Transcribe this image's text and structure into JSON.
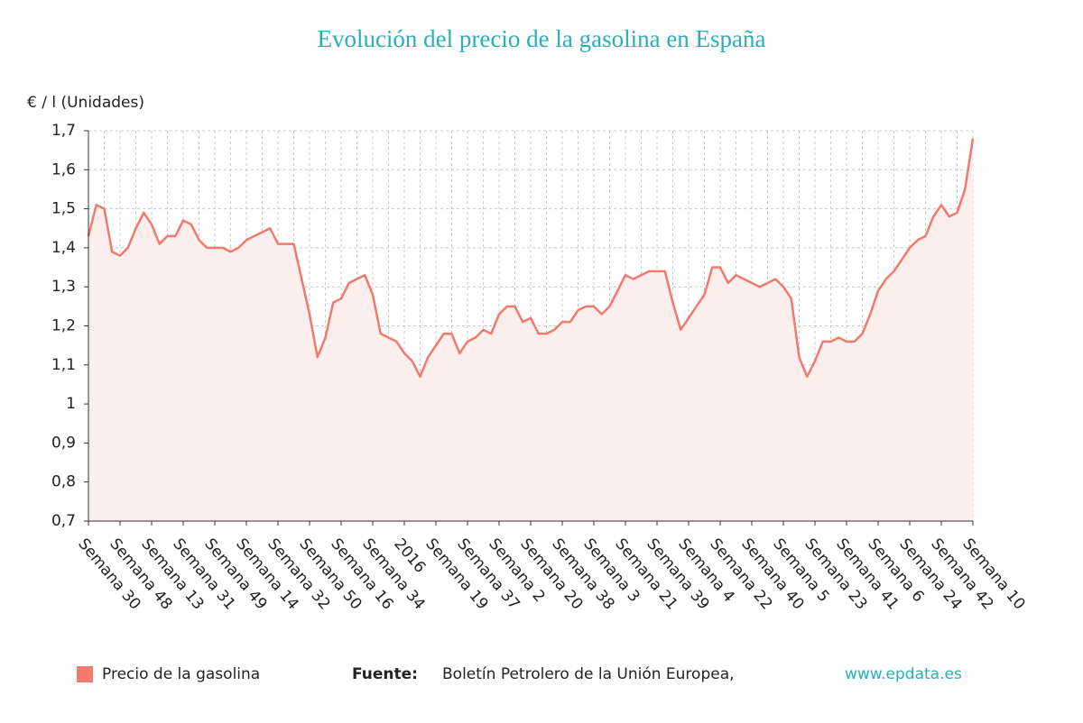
{
  "chart_data": {
    "type": "line",
    "title": "Evolución del precio de la gasolina en España",
    "y_label": "€ / l (Unidades)",
    "categories": [
      "Semana 30",
      null,
      null,
      null,
      "Semana 48",
      null,
      null,
      null,
      "Semana 13",
      null,
      null,
      null,
      "Semana 31",
      null,
      null,
      null,
      "Semana 49",
      null,
      null,
      null,
      "Semana 14",
      null,
      null,
      null,
      "Semana 32",
      null,
      null,
      null,
      "Semana 50",
      null,
      null,
      null,
      "Semana 16",
      null,
      null,
      null,
      "Semana 34",
      null,
      null,
      null,
      "2016",
      null,
      null,
      null,
      "Semana 19",
      null,
      null,
      null,
      "Semana 37",
      null,
      null,
      null,
      "Semana 2",
      null,
      null,
      null,
      "Semana 20",
      null,
      null,
      null,
      "Semana 38",
      null,
      null,
      null,
      "Semana 3",
      null,
      null,
      null,
      "Semana 21",
      null,
      null,
      null,
      "Semana 39",
      null,
      null,
      null,
      "Semana 4",
      null,
      null,
      null,
      "Semana 22",
      null,
      null,
      null,
      "Semana 40",
      null,
      null,
      null,
      "Semana 5",
      null,
      null,
      null,
      "Semana 23",
      null,
      null,
      null,
      "Semana 41",
      null,
      null,
      null,
      "Semana 6",
      null,
      null,
      null,
      "Semana 24",
      null,
      null,
      null,
      "Semana 42",
      null,
      null,
      null,
      "Semana 10"
    ],
    "series": [
      {
        "name": "Precio de la gasolina",
        "color": "#f07a6c",
        "values": [
          1.43,
          1.51,
          1.5,
          1.39,
          1.38,
          1.4,
          1.45,
          1.49,
          1.46,
          1.41,
          1.43,
          1.43,
          1.47,
          1.46,
          1.42,
          1.4,
          1.4,
          1.4,
          1.39,
          1.4,
          1.42,
          1.43,
          1.44,
          1.45,
          1.41,
          1.41,
          1.41,
          1.32,
          1.23,
          1.12,
          1.17,
          1.26,
          1.27,
          1.31,
          1.32,
          1.33,
          1.28,
          1.18,
          1.17,
          1.16,
          1.13,
          1.11,
          1.07,
          1.12,
          1.15,
          1.18,
          1.18,
          1.13,
          1.16,
          1.17,
          1.19,
          1.18,
          1.23,
          1.25,
          1.25,
          1.21,
          1.22,
          1.18,
          1.18,
          1.19,
          1.21,
          1.21,
          1.24,
          1.25,
          1.25,
          1.23,
          1.25,
          1.29,
          1.33,
          1.32,
          1.33,
          1.34,
          1.34,
          1.34,
          1.26,
          1.19,
          1.22,
          1.25,
          1.28,
          1.35,
          1.35,
          1.31,
          1.33,
          1.32,
          1.31,
          1.3,
          1.31,
          1.32,
          1.3,
          1.27,
          1.12,
          1.07,
          1.11,
          1.16,
          1.16,
          1.17,
          1.16,
          1.16,
          1.18,
          1.23,
          1.29,
          1.32,
          1.34,
          1.37,
          1.4,
          1.42,
          1.43,
          1.48,
          1.51,
          1.48,
          1.49,
          1.55,
          1.68
        ]
      }
    ],
    "ylim": [
      0.7,
      1.7
    ],
    "yticks": [
      {
        "value": 0.7,
        "label": "0,7"
      },
      {
        "value": 0.8,
        "label": "0,8"
      },
      {
        "value": 0.9,
        "label": "0,9"
      },
      1,
      {
        "value": 1.1,
        "label": "1,1"
      },
      {
        "value": 1.2,
        "label": "1,2"
      },
      {
        "value": 1.3,
        "label": "1,3"
      },
      {
        "value": 1.4,
        "label": "1,4"
      },
      {
        "value": 1.5,
        "label": "1,5"
      },
      {
        "value": 1.6,
        "label": "1,6"
      },
      {
        "value": 1.7,
        "label": "1,7"
      }
    ],
    "grid": true,
    "area_fill": "#fdeeee"
  },
  "source": {
    "label": "Fuente:",
    "text": "Boletín Petrolero de la Unión Europea,",
    "link": "www.epdata.es"
  }
}
